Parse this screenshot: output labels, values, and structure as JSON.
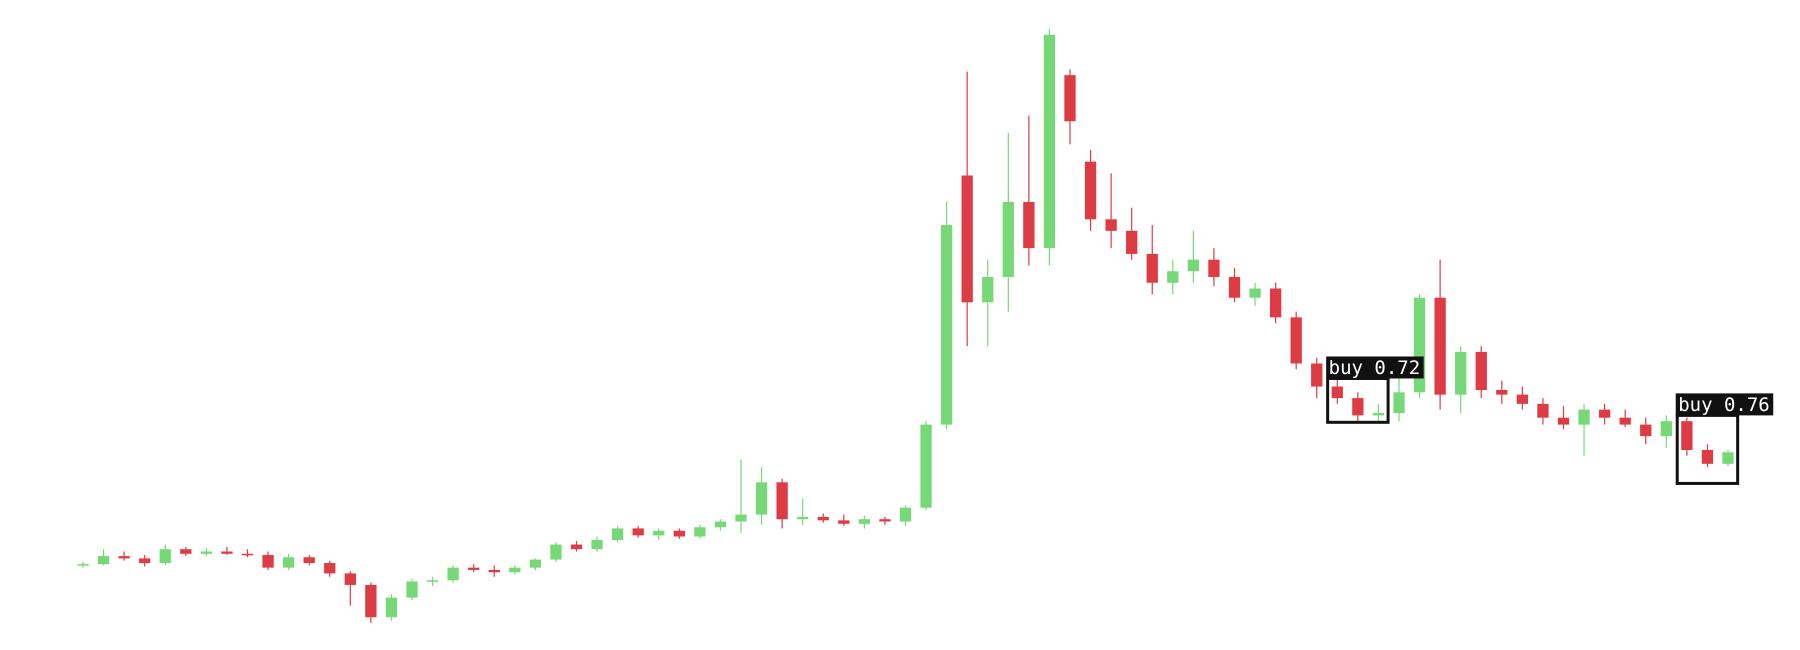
{
  "chart_data": {
    "type": "candlestick",
    "up_color": "#77d877",
    "down_color": "#dd3c44",
    "open": [
      110,
      111,
      118,
      116,
      112,
      124,
      120,
      122,
      120,
      119,
      108,
      117,
      112,
      103,
      93,
      65,
      82,
      96,
      97,
      108,
      106,
      104,
      108,
      115,
      128,
      124,
      132,
      142,
      136,
      140,
      135,
      143,
      148,
      154,
      182,
      150,
      152,
      149,
      146,
      150,
      148,
      160,
      232,
      448,
      338,
      360,
      425,
      385,
      535,
      460,
      410,
      400,
      380,
      355,
      365,
      375,
      360,
      342,
      350,
      325,
      285,
      265,
      255,
      240,
      242,
      260,
      342,
      258,
      295,
      262,
      258,
      250,
      238,
      232,
      245,
      238,
      232,
      222,
      235,
      210,
      198
    ],
    "high": [
      113,
      124,
      122,
      119,
      128,
      126,
      125,
      126,
      124,
      122,
      120,
      119,
      114,
      105,
      95,
      85,
      98,
      100,
      110,
      111,
      110,
      110,
      116,
      130,
      131,
      135,
      144,
      144,
      142,
      142,
      145,
      150,
      202,
      195,
      185,
      168,
      155,
      154,
      153,
      152,
      162,
      235,
      425,
      538,
      375,
      485,
      500,
      575,
      540,
      470,
      450,
      420,
      405,
      375,
      400,
      385,
      368,
      355,
      355,
      330,
      290,
      275,
      260,
      250,
      280,
      345,
      375,
      300,
      300,
      270,
      265,
      255,
      248,
      250,
      250,
      245,
      238,
      240,
      238,
      215,
      210
    ],
    "low": [
      108,
      110,
      114,
      109,
      110,
      118,
      118,
      119,
      117,
      106,
      106,
      110,
      100,
      75,
      60,
      62,
      80,
      92,
      95,
      104,
      100,
      102,
      106,
      113,
      122,
      122,
      130,
      134,
      132,
      133,
      133,
      140,
      138,
      145,
      142,
      145,
      147,
      144,
      142,
      145,
      144,
      158,
      228,
      300,
      300,
      330,
      370,
      370,
      475,
      400,
      385,
      375,
      345,
      345,
      355,
      352,
      338,
      335,
      320,
      280,
      255,
      250,
      235,
      235,
      235,
      255,
      245,
      242,
      255,
      250,
      245,
      232,
      228,
      205,
      232,
      230,
      215,
      212,
      205,
      195,
      196
    ],
    "close": [
      111,
      118,
      116,
      112,
      124,
      120,
      122,
      120,
      119,
      108,
      117,
      112,
      103,
      93,
      65,
      82,
      96,
      97,
      108,
      106,
      104,
      108,
      115,
      128,
      124,
      132,
      142,
      136,
      140,
      135,
      143,
      148,
      154,
      182,
      150,
      152,
      149,
      146,
      150,
      148,
      160,
      232,
      405,
      338,
      360,
      425,
      385,
      570,
      495,
      410,
      400,
      380,
      355,
      365,
      375,
      360,
      342,
      350,
      325,
      285,
      265,
      255,
      240,
      242,
      260,
      342,
      258,
      295,
      262,
      258,
      250,
      238,
      232,
      245,
      238,
      232,
      222,
      235,
      210,
      198,
      208
    ],
    "annotations": [
      {
        "label": "buy 0.72",
        "x": [
          61,
          63
        ],
        "y": [
          234,
          272
        ]
      },
      {
        "label": "buy 0.76",
        "x": [
          78,
          80
        ],
        "y": [
          181,
          240
        ]
      }
    ]
  }
}
